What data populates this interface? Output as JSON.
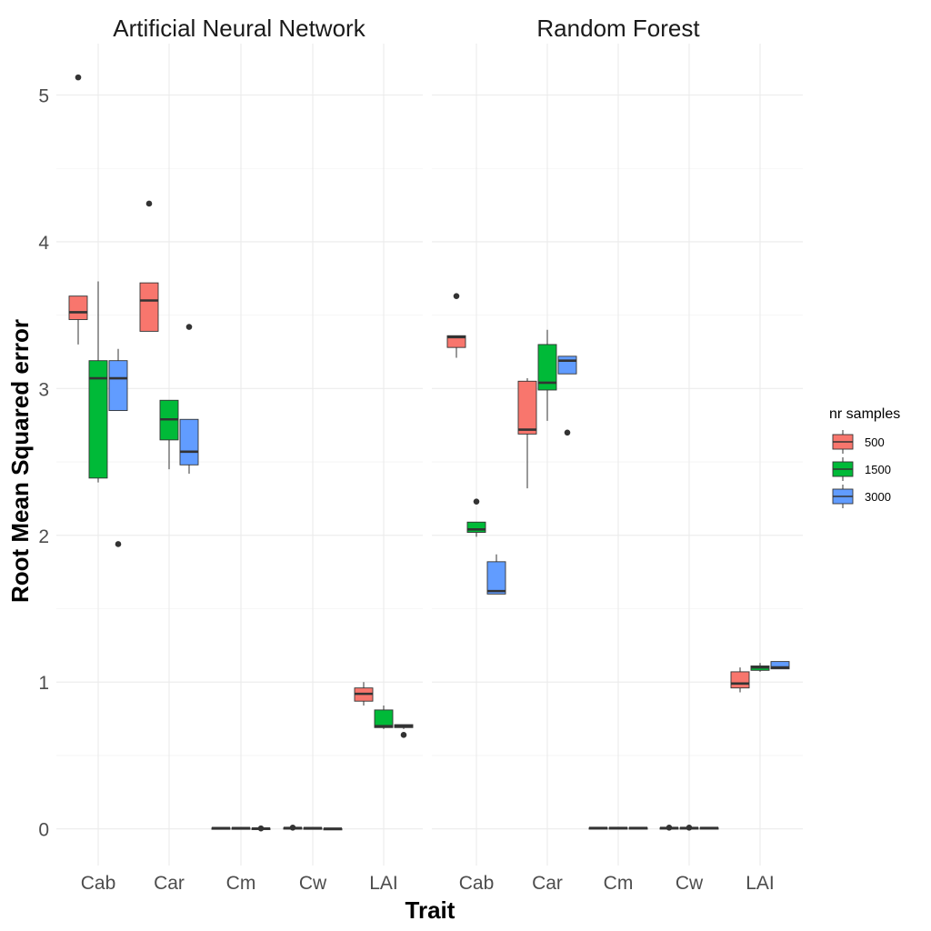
{
  "chart_data": {
    "type": "boxplot",
    "facets": [
      "Artificial Neural Network",
      "Random Forest"
    ],
    "categories": [
      "Cab",
      "Car",
      "Cm",
      "Cw",
      "LAI"
    ],
    "xlabel": "Trait",
    "ylabel": "Root Mean Squared error",
    "ylim": [
      -0.25,
      5.35
    ],
    "yticks": [
      0,
      1,
      2,
      3,
      4,
      5
    ],
    "grid": true,
    "legend": {
      "title": "nr samples",
      "placement": "right",
      "entries": [
        {
          "name": "500",
          "color": "#F8766D"
        },
        {
          "name": "1500",
          "color": "#00BA38"
        },
        {
          "name": "3000",
          "color": "#619CFF"
        }
      ]
    },
    "boxes": [
      {
        "facet": "Artificial Neural Network",
        "category": "Cab",
        "group": "500",
        "min": 3.3,
        "q1": 3.47,
        "median": 3.52,
        "q3": 3.63,
        "max": 3.63,
        "outliers": [
          5.12
        ]
      },
      {
        "facet": "Artificial Neural Network",
        "category": "Cab",
        "group": "1500",
        "min": 2.36,
        "q1": 2.39,
        "median": 3.07,
        "q3": 3.19,
        "max": 3.73,
        "outliers": []
      },
      {
        "facet": "Artificial Neural Network",
        "category": "Cab",
        "group": "3000",
        "min": 2.85,
        "q1": 2.85,
        "median": 3.07,
        "q3": 3.19,
        "max": 3.27,
        "outliers": [
          1.94
        ]
      },
      {
        "facet": "Artificial Neural Network",
        "category": "Car",
        "group": "500",
        "min": 3.39,
        "q1": 3.39,
        "median": 3.6,
        "q3": 3.72,
        "max": 3.72,
        "outliers": [
          4.26
        ]
      },
      {
        "facet": "Artificial Neural Network",
        "category": "Car",
        "group": "1500",
        "min": 2.45,
        "q1": 2.65,
        "median": 2.79,
        "q3": 2.92,
        "max": 2.92,
        "outliers": []
      },
      {
        "facet": "Artificial Neural Network",
        "category": "Car",
        "group": "3000",
        "min": 2.42,
        "q1": 2.48,
        "median": 2.57,
        "q3": 2.79,
        "max": 2.79,
        "outliers": [
          3.42
        ]
      },
      {
        "facet": "Artificial Neural Network",
        "category": "Cm",
        "group": "500",
        "min": 0.005,
        "q1": 0.005,
        "median": 0.005,
        "q3": 0.006,
        "max": 0.006,
        "outliers": []
      },
      {
        "facet": "Artificial Neural Network",
        "category": "Cm",
        "group": "1500",
        "min": 0.005,
        "q1": 0.005,
        "median": 0.005,
        "q3": 0.006,
        "max": 0.006,
        "outliers": []
      },
      {
        "facet": "Artificial Neural Network",
        "category": "Cm",
        "group": "3000",
        "min": 0.0,
        "q1": 0.0,
        "median": 0.002,
        "q3": 0.004,
        "max": 0.006,
        "outliers": [
          0.003
        ]
      },
      {
        "facet": "Artificial Neural Network",
        "category": "Cw",
        "group": "500",
        "min": 0.006,
        "q1": 0.006,
        "median": 0.006,
        "q3": 0.007,
        "max": 0.007,
        "outliers": [
          0.008
        ]
      },
      {
        "facet": "Artificial Neural Network",
        "category": "Cw",
        "group": "1500",
        "min": 0.005,
        "q1": 0.005,
        "median": 0.005,
        "q3": 0.006,
        "max": 0.006,
        "outliers": []
      },
      {
        "facet": "Artificial Neural Network",
        "category": "Cw",
        "group": "3000",
        "min": 0.0,
        "q1": 0.0,
        "median": 0.001,
        "q3": 0.002,
        "max": 0.002,
        "outliers": []
      },
      {
        "facet": "Artificial Neural Network",
        "category": "LAI",
        "group": "500",
        "min": 0.84,
        "q1": 0.87,
        "median": 0.92,
        "q3": 0.96,
        "max": 1.0,
        "outliers": []
      },
      {
        "facet": "Artificial Neural Network",
        "category": "LAI",
        "group": "1500",
        "min": 0.68,
        "q1": 0.69,
        "median": 0.7,
        "q3": 0.81,
        "max": 0.84,
        "outliers": []
      },
      {
        "facet": "Artificial Neural Network",
        "category": "LAI",
        "group": "3000",
        "min": 0.68,
        "q1": 0.69,
        "median": 0.7,
        "q3": 0.71,
        "max": 0.71,
        "outliers": [
          0.64
        ]
      },
      {
        "facet": "Random Forest",
        "category": "Cab",
        "group": "500",
        "min": 3.21,
        "q1": 3.28,
        "median": 3.35,
        "q3": 3.36,
        "max": 3.36,
        "outliers": [
          3.63
        ]
      },
      {
        "facet": "Random Forest",
        "category": "Cab",
        "group": "1500",
        "min": 1.99,
        "q1": 2.02,
        "median": 2.04,
        "q3": 2.09,
        "max": 2.09,
        "outliers": [
          2.23
        ]
      },
      {
        "facet": "Random Forest",
        "category": "Cab",
        "group": "3000",
        "min": 1.6,
        "q1": 1.6,
        "median": 1.62,
        "q3": 1.82,
        "max": 1.87,
        "outliers": []
      },
      {
        "facet": "Random Forest",
        "category": "Car",
        "group": "500",
        "min": 2.32,
        "q1": 2.69,
        "median": 2.72,
        "q3": 3.05,
        "max": 3.07,
        "outliers": []
      },
      {
        "facet": "Random Forest",
        "category": "Car",
        "group": "1500",
        "min": 2.78,
        "q1": 2.99,
        "median": 3.04,
        "q3": 3.3,
        "max": 3.4,
        "outliers": []
      },
      {
        "facet": "Random Forest",
        "category": "Car",
        "group": "3000",
        "min": 3.1,
        "q1": 3.1,
        "median": 3.19,
        "q3": 3.22,
        "max": 3.22,
        "outliers": [
          2.7
        ]
      },
      {
        "facet": "Random Forest",
        "category": "Cm",
        "group": "500",
        "min": 0.006,
        "q1": 0.006,
        "median": 0.006,
        "q3": 0.007,
        "max": 0.007,
        "outliers": []
      },
      {
        "facet": "Random Forest",
        "category": "Cm",
        "group": "1500",
        "min": 0.006,
        "q1": 0.006,
        "median": 0.006,
        "q3": 0.007,
        "max": 0.007,
        "outliers": []
      },
      {
        "facet": "Random Forest",
        "category": "Cm",
        "group": "3000",
        "min": 0.006,
        "q1": 0.006,
        "median": 0.006,
        "q3": 0.007,
        "max": 0.007,
        "outliers": []
      },
      {
        "facet": "Random Forest",
        "category": "Cw",
        "group": "500",
        "min": 0.006,
        "q1": 0.006,
        "median": 0.006,
        "q3": 0.007,
        "max": 0.007,
        "outliers": [
          0.008
        ]
      },
      {
        "facet": "Random Forest",
        "category": "Cw",
        "group": "1500",
        "min": 0.006,
        "q1": 0.006,
        "median": 0.006,
        "q3": 0.007,
        "max": 0.007,
        "outliers": [
          0.008
        ]
      },
      {
        "facet": "Random Forest",
        "category": "Cw",
        "group": "3000",
        "min": 0.006,
        "q1": 0.006,
        "median": 0.006,
        "q3": 0.007,
        "max": 0.007,
        "outliers": []
      },
      {
        "facet": "Random Forest",
        "category": "LAI",
        "group": "500",
        "min": 0.93,
        "q1": 0.96,
        "median": 0.99,
        "q3": 1.07,
        "max": 1.1,
        "outliers": []
      },
      {
        "facet": "Random Forest",
        "category": "LAI",
        "group": "1500",
        "min": 1.07,
        "q1": 1.08,
        "median": 1.1,
        "q3": 1.11,
        "max": 1.13,
        "outliers": []
      },
      {
        "facet": "Random Forest",
        "category": "LAI",
        "group": "3000",
        "min": 1.09,
        "q1": 1.09,
        "median": 1.1,
        "q3": 1.14,
        "max": 1.14,
        "outliers": []
      }
    ]
  }
}
